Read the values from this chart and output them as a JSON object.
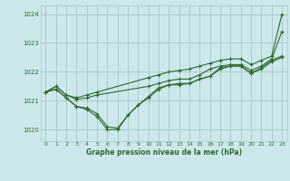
{
  "bg_color": "#cce8ec",
  "grid_color": "#aacccc",
  "line_color": "#2d6a2d",
  "marker_color": "#2d6a2d",
  "title": "Graphe pression niveau de la mer (hPa)",
  "xlim": [
    -0.5,
    23.5
  ],
  "ylim": [
    1019.6,
    1024.3
  ],
  "yticks": [
    1020,
    1021,
    1022,
    1023,
    1024
  ],
  "xticks": [
    0,
    1,
    2,
    3,
    4,
    5,
    6,
    7,
    8,
    9,
    10,
    11,
    12,
    13,
    14,
    15,
    16,
    17,
    18,
    19,
    20,
    21,
    22,
    23
  ],
  "series": [
    {
      "x": [
        0,
        1,
        2,
        3,
        4,
        5,
        10,
        11,
        12,
        13,
        14,
        15,
        16,
        17,
        18,
        19,
        20,
        21,
        22,
        23
      ],
      "y": [
        1021.3,
        1021.5,
        1021.2,
        1021.1,
        1021.2,
        1021.3,
        1021.8,
        1021.9,
        1022.0,
        1022.05,
        1022.1,
        1022.2,
        1022.3,
        1022.4,
        1022.45,
        1022.45,
        1022.25,
        1022.4,
        1022.55,
        1024.0
      ]
    },
    {
      "x": [
        0,
        1,
        2,
        3,
        4,
        5,
        10,
        11,
        12,
        13,
        14,
        15,
        16,
        17,
        18,
        19,
        20,
        21,
        22,
        23
      ],
      "y": [
        1021.3,
        1021.5,
        1021.2,
        1021.05,
        1021.1,
        1021.2,
        1021.5,
        1021.6,
        1021.7,
        1021.75,
        1021.75,
        1021.9,
        1022.1,
        1022.2,
        1022.25,
        1022.25,
        1022.05,
        1022.2,
        1022.45,
        1023.4
      ]
    },
    {
      "x": [
        0,
        1,
        2,
        3,
        4,
        5,
        6,
        7,
        8,
        9,
        10,
        11,
        12,
        13,
        14,
        15,
        16,
        17,
        18,
        19,
        20,
        21,
        22,
        23
      ],
      "y": [
        1021.3,
        1021.4,
        1021.1,
        1020.8,
        1020.75,
        1020.55,
        1020.1,
        1020.05,
        1020.5,
        1020.85,
        1021.15,
        1021.45,
        1021.55,
        1021.6,
        1021.6,
        1021.75,
        1021.85,
        1022.15,
        1022.2,
        1022.2,
        1021.95,
        1022.15,
        1022.4,
        1022.55
      ]
    },
    {
      "x": [
        0,
        1,
        2,
        3,
        4,
        5,
        6,
        7,
        8,
        9,
        10,
        11,
        12,
        13,
        14,
        15,
        16,
        17,
        18,
        19,
        20,
        21,
        22,
        23
      ],
      "y": [
        1021.3,
        1021.4,
        1021.1,
        1020.8,
        1020.7,
        1020.45,
        1020.0,
        1020.0,
        1020.5,
        1020.85,
        1021.1,
        1021.4,
        1021.55,
        1021.55,
        1021.6,
        1021.75,
        1021.85,
        1022.1,
        1022.2,
        1022.2,
        1021.95,
        1022.1,
        1022.35,
        1022.5
      ]
    }
  ]
}
